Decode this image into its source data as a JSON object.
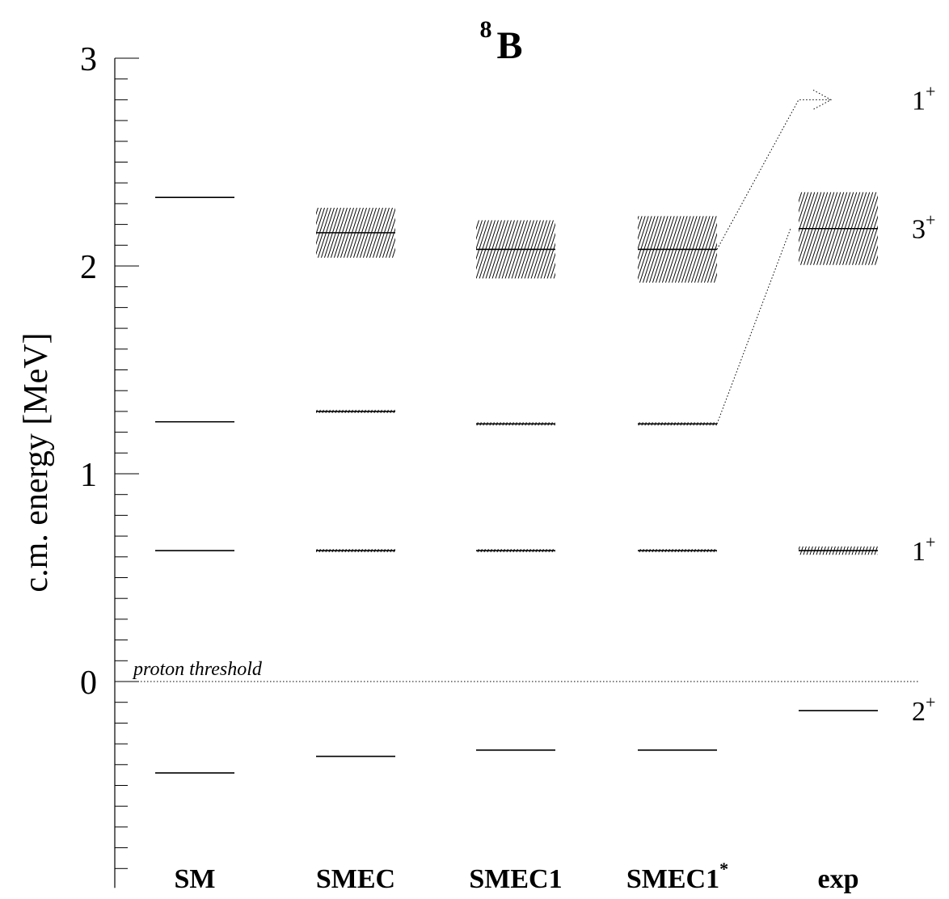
{
  "chart_data": {
    "type": "level-scheme",
    "nucleus": {
      "mass_number": "8",
      "symbol": "B"
    },
    "ylabel": "c.m. energy [MeV]",
    "yticks": [
      "3",
      "2",
      "1",
      "0"
    ],
    "ylim": [
      -0.9,
      3.0
    ],
    "threshold": {
      "energy": 0,
      "label": "proton threshold"
    },
    "columns": [
      {
        "label": "SM",
        "sup": "",
        "levels": [
          {
            "e": -0.44,
            "width": 0
          },
          {
            "e": 0.63,
            "width": 0
          },
          {
            "e": 1.25,
            "width": 0
          },
          {
            "e": 2.33,
            "width": 0
          }
        ]
      },
      {
        "label": "SMEC",
        "sup": "",
        "levels": [
          {
            "e": -0.36,
            "width": 0
          },
          {
            "e": 0.63,
            "width": 0.01
          },
          {
            "e": 1.3,
            "width": 0.01
          },
          {
            "e": 2.16,
            "width": 0.24
          }
        ]
      },
      {
        "label": "SMEC1",
        "sup": "",
        "levels": [
          {
            "e": -0.33,
            "width": 0
          },
          {
            "e": 0.63,
            "width": 0.01
          },
          {
            "e": 1.24,
            "width": 0.01
          },
          {
            "e": 2.08,
            "width": 0.28
          }
        ]
      },
      {
        "label": "SMEC1",
        "sup": "*",
        "levels": [
          {
            "e": -0.33,
            "width": 0
          },
          {
            "e": 0.63,
            "width": 0.01
          },
          {
            "e": 1.24,
            "width": 0.01
          },
          {
            "e": 2.08,
            "width": 0.32
          }
        ]
      },
      {
        "label": "exp",
        "sup": "",
        "levels": [
          {
            "e": -0.14,
            "width": 0
          },
          {
            "e": 0.63,
            "width": 0.04
          },
          {
            "e": 2.18,
            "width": 0.35
          }
        ]
      }
    ],
    "spin_labels": [
      {
        "j": "1",
        "parity": "+",
        "e": 2.8
      },
      {
        "j": "3",
        "parity": "+",
        "e": 2.18
      },
      {
        "j": "1",
        "parity": "+",
        "e": 0.63
      },
      {
        "j": "2",
        "parity": "+",
        "e": -0.14
      }
    ],
    "connectors": [
      {
        "from_column": 3,
        "from_e": 2.08,
        "to_e": 2.8,
        "arrow": true
      },
      {
        "from_column": 3,
        "from_e": 1.24,
        "to_e": 2.18,
        "arrow": false
      }
    ]
  }
}
